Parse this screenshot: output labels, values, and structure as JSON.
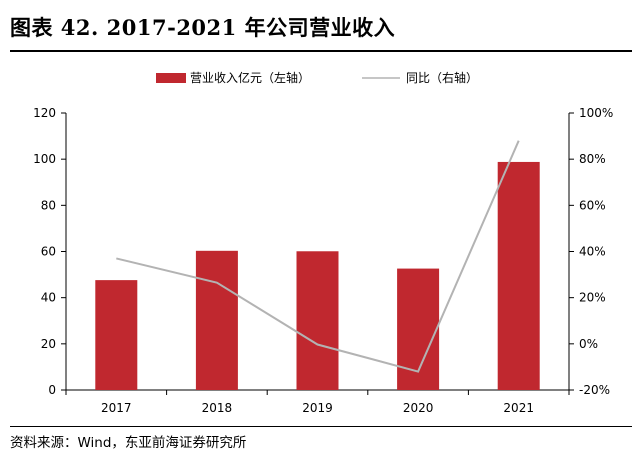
{
  "title": "图表 42. 2017-2021 年公司营业收入",
  "source": "资料来源：Wind，东亚前海证券研究所",
  "chart_data": {
    "type": "bar",
    "categories": [
      "2017",
      "2018",
      "2019",
      "2020",
      "2021"
    ],
    "series": [
      {
        "name": "营业收入亿元（左轴）",
        "type": "bar",
        "axis": "left",
        "color": "#c0282f",
        "values": [
          47.6,
          60.3,
          60.1,
          52.6,
          98.8
        ]
      },
      {
        "name": "同比（右轴）",
        "type": "line",
        "axis": "right",
        "color": "#b3b3b3",
        "values": [
          37,
          26.5,
          -0.3,
          -12,
          88
        ]
      }
    ],
    "left_axis": {
      "ylim": [
        0,
        120
      ],
      "ticks": [
        "0",
        "20",
        "40",
        "60",
        "80",
        "100",
        "120"
      ]
    },
    "right_axis": {
      "ylim": [
        -20,
        100
      ],
      "ticks": [
        "-20%",
        "0%",
        "20%",
        "40%",
        "60%",
        "80%",
        "100%"
      ]
    },
    "legend_position": "top-center",
    "grid": false
  }
}
